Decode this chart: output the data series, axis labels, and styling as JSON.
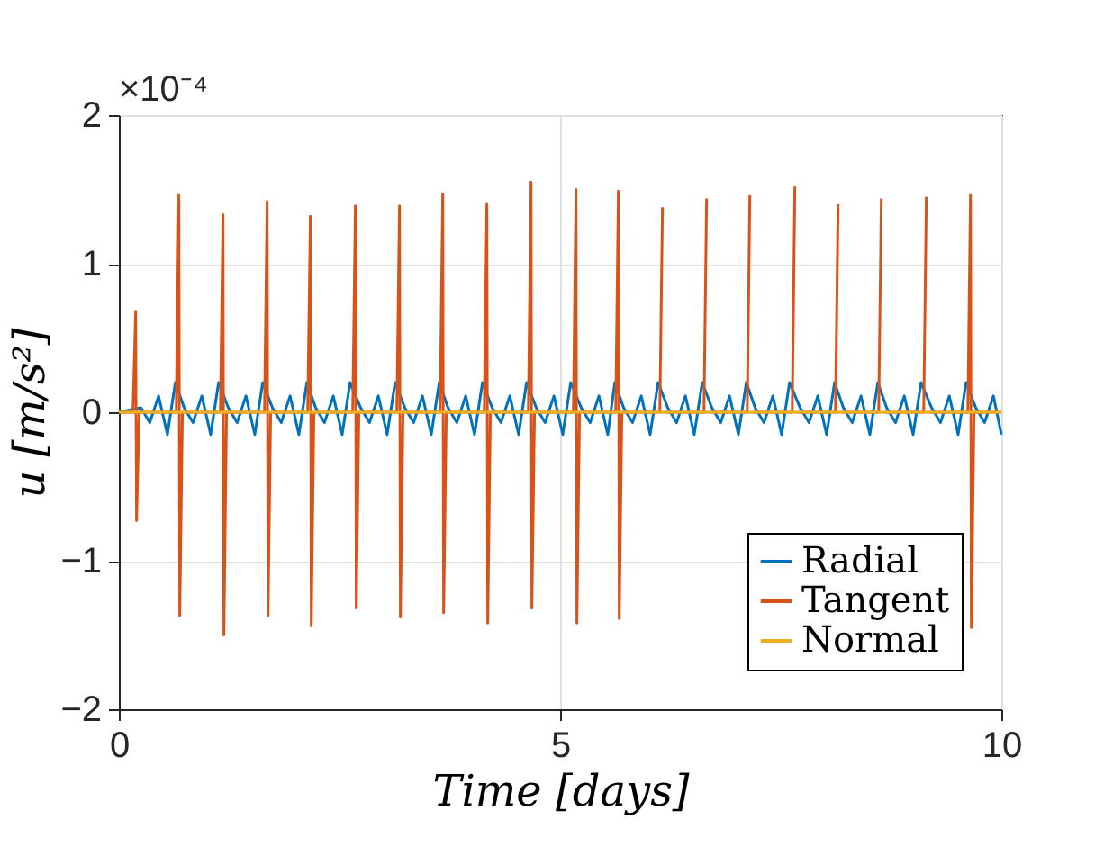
{
  "chart_data": {
    "type": "line",
    "xlabel": "Time [days]",
    "ylabel": "u [m/s²]",
    "annotations": [
      "×10⁻⁴"
    ],
    "xlim": [
      0,
      10
    ],
    "xticks": [
      0,
      5,
      10
    ],
    "ylim": [
      -2,
      2
    ],
    "yticks": [
      -2,
      -1,
      0,
      1,
      2
    ],
    "grid": true,
    "legend": "bottom right",
    "line_style": "solid",
    "marker": "none",
    "series": [
      {
        "name": "Radial",
        "color": "#0072bd",
        "x": [
          0,
          0.25,
          0.35,
          0.45,
          0.55,
          0.64,
          0.74,
          0.84,
          0.94,
          1.04,
          1.13,
          1.24,
          1.34,
          1.44,
          1.54,
          1.63,
          1.74,
          1.84,
          1.94,
          2.04,
          2.13,
          2.23,
          2.33,
          2.43,
          2.53,
          2.62,
          2.74,
          2.84,
          2.94,
          3.04,
          3.13,
          3.24,
          3.34,
          3.44,
          3.54,
          3.63,
          3.73,
          3.83,
          3.93,
          4.03,
          4.12,
          4.23,
          4.33,
          4.43,
          4.53,
          4.62,
          4.73,
          4.83,
          4.93,
          5.03,
          5.12,
          5.24,
          5.34,
          5.44,
          5.54,
          5.62,
          5.72,
          5.82,
          5.92,
          6.02,
          6.11,
          6.22,
          6.32,
          6.42,
          6.52,
          6.61,
          6.72,
          6.82,
          6.92,
          7.02,
          7.11,
          7.21,
          7.31,
          7.41,
          7.51,
          7.6,
          7.72,
          7.82,
          7.92,
          8.02,
          8.11,
          8.21,
          8.31,
          8.41,
          8.51,
          8.6,
          8.7,
          8.8,
          8.9,
          9.0,
          9.09,
          9.21,
          9.31,
          9.41,
          9.51,
          9.6,
          9.71,
          9.81,
          9.91,
          10.0
        ],
        "values": [
          0,
          0.03,
          -0.07,
          0.11,
          -0.15,
          0.2,
          0.03,
          -0.07,
          0.11,
          -0.15,
          0.2,
          0.03,
          -0.07,
          0.11,
          -0.15,
          0.2,
          0.03,
          -0.07,
          0.11,
          -0.15,
          0.2,
          0.03,
          -0.07,
          0.11,
          -0.15,
          0.2,
          0.03,
          -0.07,
          0.11,
          -0.15,
          0.2,
          0.03,
          -0.07,
          0.11,
          -0.15,
          0.2,
          0.03,
          -0.07,
          0.11,
          -0.15,
          0.2,
          0.03,
          -0.07,
          0.11,
          -0.15,
          0.2,
          0.03,
          -0.07,
          0.11,
          -0.15,
          0.2,
          0.03,
          -0.07,
          0.11,
          -0.15,
          0.2,
          0.03,
          -0.07,
          0.11,
          -0.15,
          0.2,
          0.03,
          -0.07,
          0.11,
          -0.15,
          0.2,
          0.03,
          -0.07,
          0.11,
          -0.15,
          0.2,
          0.03,
          -0.07,
          0.11,
          -0.15,
          0.2,
          0.03,
          -0.07,
          0.11,
          -0.15,
          0.2,
          0.03,
          -0.07,
          0.11,
          -0.15,
          0.2,
          0.03,
          -0.07,
          0.11,
          -0.15,
          0.2,
          0.03,
          -0.07,
          0.11,
          -0.15,
          0.2,
          0.03,
          -0.07,
          0.11,
          -0.15
        ]
      },
      {
        "name": "Tangent",
        "color": "#d95319",
        "x": [
          0,
          0.16,
          0.19,
          0.2,
          0.23,
          0.65,
          0.68,
          0.69,
          0.72,
          1.15,
          1.18,
          1.19,
          1.22,
          1.65,
          1.68,
          1.69,
          1.72,
          2.14,
          2.17,
          2.18,
          2.21,
          2.65,
          2.68,
          2.69,
          2.72,
          3.15,
          3.18,
          3.19,
          3.22,
          3.64,
          3.67,
          3.68,
          3.71,
          4.14,
          4.17,
          4.18,
          4.21,
          4.64,
          4.67,
          4.68,
          4.71,
          5.15,
          5.18,
          5.19,
          5.22,
          5.63,
          5.66,
          5.67,
          5.7,
          6.13,
          6.16,
          6.17,
          6.2,
          6.63,
          6.66,
          6.67,
          6.7,
          7.12,
          7.15,
          7.16,
          7.19,
          7.63,
          7.66,
          7.67,
          7.7,
          8.12,
          8.15,
          8.16,
          8.19,
          8.61,
          8.64,
          8.65,
          8.68,
          9.12,
          9.15,
          9.16,
          9.19,
          9.62,
          9.65,
          9.66,
          9.69,
          10.0
        ],
        "values": [
          0,
          0,
          0.68,
          -0.73,
          0,
          0,
          1.46,
          -1.37,
          0,
          0,
          1.33,
          -1.5,
          0,
          0,
          1.42,
          -1.37,
          0,
          0,
          1.32,
          -1.44,
          0,
          0,
          1.39,
          -1.32,
          0,
          0,
          1.39,
          -1.38,
          0,
          0,
          1.47,
          -1.35,
          0,
          0,
          1.4,
          -1.42,
          0,
          0,
          1.55,
          -1.32,
          0,
          0,
          1.5,
          -1.42,
          0,
          0,
          1.49,
          -1.39,
          0,
          0,
          1.38,
          null,
          0,
          0,
          1.44,
          null,
          0,
          0,
          1.46,
          null,
          0,
          0,
          1.52,
          null,
          0,
          0,
          1.4,
          null,
          0,
          0,
          1.44,
          null,
          0,
          0,
          1.45,
          null,
          0,
          0,
          1.46,
          -1.45,
          0,
          0
        ]
      },
      {
        "name": "Normal",
        "color": "#edb120",
        "x": [
          0,
          10
        ],
        "values": [
          0,
          0
        ]
      }
    ]
  }
}
